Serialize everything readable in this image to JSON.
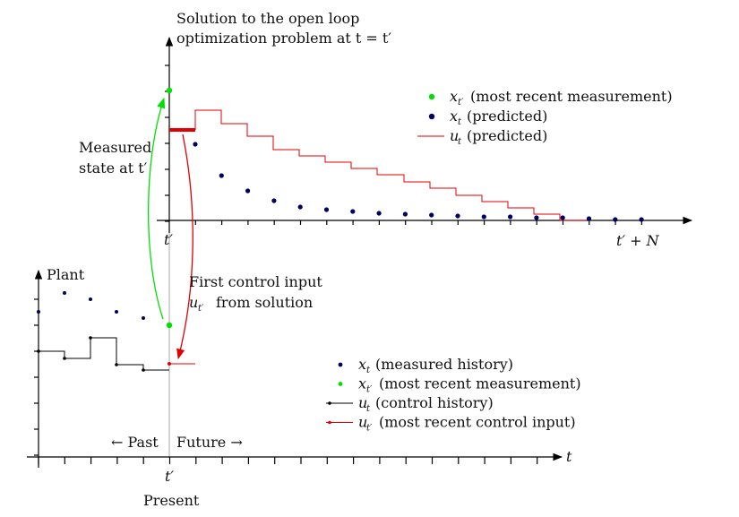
{
  "title": {
    "line1": "Solution to the open loop",
    "line2": "optimization problem at t = t′"
  },
  "measured_label": {
    "line1": "Measured",
    "line2": "state at t′"
  },
  "control_label": {
    "line1": "First control input",
    "line2": "from solution",
    "var": "u",
    "sub": "t′"
  },
  "plant_label": "Plant",
  "past_label": "← Past",
  "future_label": "Future →",
  "present_label": "Present",
  "t_prime": "t′",
  "t_prime_N": "t′ + N",
  "t_axis": "t",
  "legend_top": [
    {
      "sym": "x",
      "sub": "t′",
      "text": "(most recent measurement)",
      "color": "#00e000",
      "kind": "dot"
    },
    {
      "sym": "x",
      "sub": "t",
      "text": "(predicted)",
      "color": "#000066",
      "kind": "dot"
    },
    {
      "sym": "u",
      "sub": "t",
      "text": "(predicted)",
      "color": "#e00000",
      "kind": "line"
    }
  ],
  "legend_bottom": [
    {
      "sym": "x",
      "sub": "t",
      "text": "(measured history)",
      "color": "#000066",
      "kind": "dot"
    },
    {
      "sym": "x",
      "sub": "t′",
      "text": "(most recent measurement)",
      "color": "#00e000",
      "kind": "dot"
    },
    {
      "sym": "u",
      "sub": "t",
      "text": "(control history)",
      "color": "#000000",
      "kind": "line"
    },
    {
      "sym": "u",
      "sub": "t′",
      "text": "(most recent control input)",
      "color": "#e00000",
      "kind": "line"
    }
  ],
  "colors": {
    "predicted_state": "#000066",
    "measurement": "#00e000",
    "control": "#e00000",
    "history": "#000000",
    "axis": "#000000"
  }
}
